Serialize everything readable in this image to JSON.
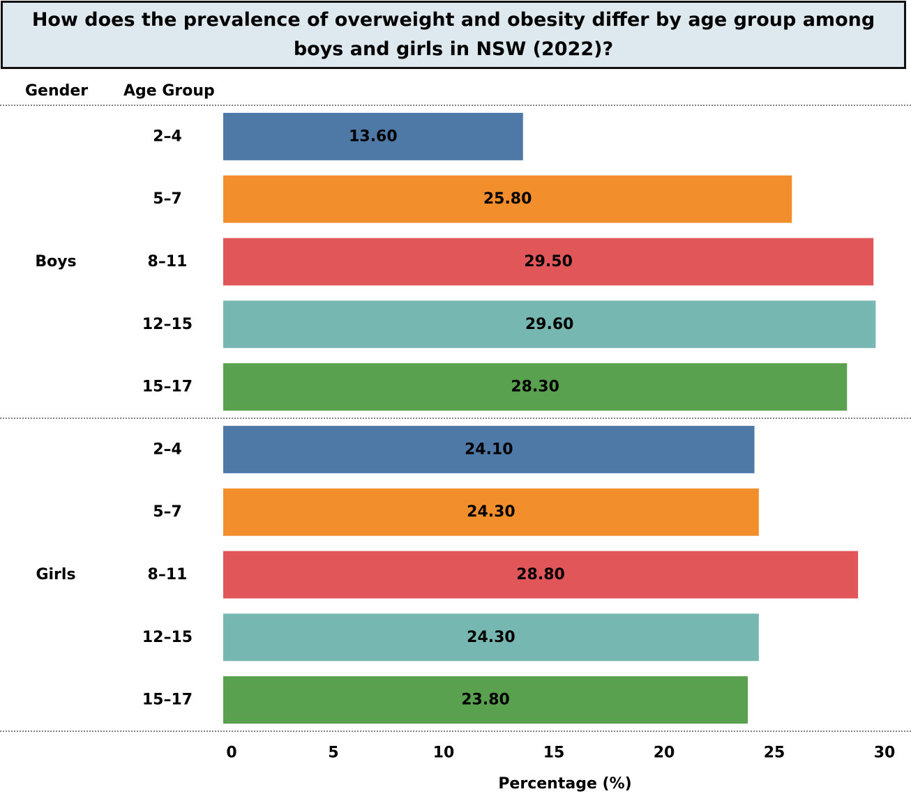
{
  "title": "How does the prevalence of overweight and obesity differ by age group among boys and girls in NSW (2022)?",
  "headers": {
    "gender": "Gender",
    "age_group": "Age Group"
  },
  "chart_data": {
    "type": "bar",
    "orientation": "horizontal",
    "xlabel": "Percentage (%)",
    "xlim": [
      0,
      30
    ],
    "xticks": [
      0,
      5,
      10,
      15,
      20,
      25,
      30
    ],
    "groups": [
      {
        "gender": "Boys",
        "bars": [
          {
            "age_group": "2–4",
            "value": 13.6,
            "label": "13.60",
            "color": "#4e79a7"
          },
          {
            "age_group": "5–7",
            "value": 25.8,
            "label": "25.80",
            "color": "#f28e2b"
          },
          {
            "age_group": "8–11",
            "value": 29.5,
            "label": "29.50",
            "color": "#e15759"
          },
          {
            "age_group": "12–15",
            "value": 29.6,
            "label": "29.60",
            "color": "#76b7b2"
          },
          {
            "age_group": "15–17",
            "value": 28.3,
            "label": "28.30",
            "color": "#59a14f"
          }
        ]
      },
      {
        "gender": "Girls",
        "bars": [
          {
            "age_group": "2–4",
            "value": 24.1,
            "label": "24.10",
            "color": "#4e79a7"
          },
          {
            "age_group": "5–7",
            "value": 24.3,
            "label": "24.30",
            "color": "#f28e2b"
          },
          {
            "age_group": "8–11",
            "value": 28.8,
            "label": "28.80",
            "color": "#e15759"
          },
          {
            "age_group": "12–15",
            "value": 24.3,
            "label": "24.30",
            "color": "#76b7b2"
          },
          {
            "age_group": "15–17",
            "value": 23.8,
            "label": "23.80",
            "color": "#59a14f"
          }
        ]
      }
    ]
  }
}
